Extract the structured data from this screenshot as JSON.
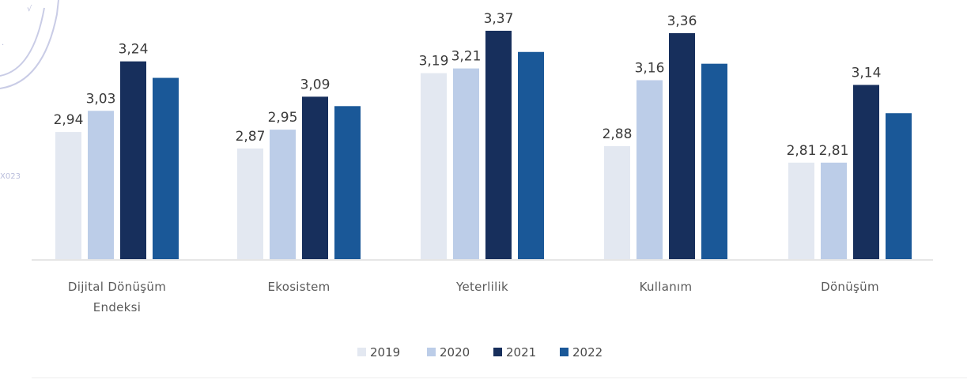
{
  "chart_data": {
    "type": "bar",
    "categories": [
      [
        "Dijital Dönüşüm",
        "Endeksi"
      ],
      [
        "Ekosistem"
      ],
      [
        "Yeterlilik"
      ],
      [
        "Kullanım"
      ],
      [
        "Dönüşüm"
      ]
    ],
    "series": [
      {
        "name": "2019",
        "color": "#e3e8f1",
        "values": [
          2.94,
          2.87,
          3.19,
          2.88,
          2.81
        ],
        "labels": [
          "2,94",
          "2,87",
          "3,19",
          "2,88",
          "2,81"
        ]
      },
      {
        "name": "2020",
        "color": "#bccde8",
        "values": [
          3.03,
          2.95,
          3.21,
          3.16,
          2.81
        ],
        "labels": [
          "3,03",
          "2,95",
          "3,21",
          "3,16",
          "2,81"
        ]
      },
      {
        "name": "2021",
        "color": "#172f5c",
        "values": [
          3.24,
          3.09,
          3.37,
          3.36,
          3.14
        ],
        "labels": [
          "3,24",
          "3,09",
          "3,37",
          "3,36",
          "3,14"
        ]
      },
      {
        "name": "2022",
        "color": "#1a5898",
        "values": [
          3.17,
          3.05,
          3.28,
          3.23,
          3.02
        ],
        "labels": [
          "",
          "",
          "",
          "",
          ""
        ]
      }
    ],
    "ylim": [
      2.4,
      3.4
    ],
    "legend": {
      "position": "bottom-center"
    },
    "grid": false
  }
}
